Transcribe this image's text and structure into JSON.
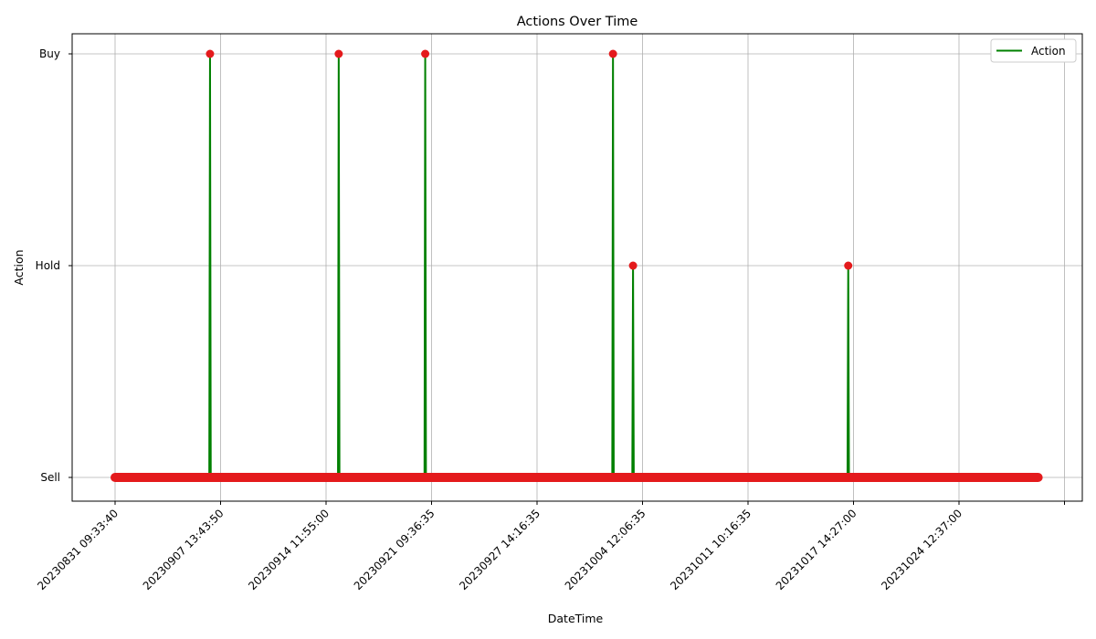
{
  "chart_data": {
    "type": "line",
    "title": "Actions Over Time",
    "xlabel": "DateTime",
    "ylabel": "Action",
    "y_categories": [
      "Sell",
      "Hold",
      "Buy"
    ],
    "x_tick_labels": [
      "20230831  09:33:40",
      "20230907  13:43:50",
      "20230914  11:55:00",
      "20230921  09:36:35",
      "20230927  14:16:35",
      "20231004  12:06:35",
      "20231011  10:16:35",
      "20231017  14:27:00",
      "20231024  12:37:00"
    ],
    "x_range_tick_units": [
      -0.41,
      9.2
    ],
    "x_start_tick": 0,
    "x_end_tick": 8.75,
    "events": [
      {
        "x_tick": 0.9,
        "action": "Buy"
      },
      {
        "x_tick": 2.12,
        "action": "Buy"
      },
      {
        "x_tick": 2.94,
        "action": "Buy"
      },
      {
        "x_tick": 4.72,
        "action": "Buy"
      },
      {
        "x_tick": 4.91,
        "action": "Hold"
      },
      {
        "x_tick": 6.95,
        "action": "Hold"
      }
    ],
    "grid": true,
    "legend": {
      "position": "top-right",
      "entries": [
        "Action"
      ]
    },
    "colors": {
      "line": "#008000",
      "marker": "#e41a1c"
    }
  }
}
